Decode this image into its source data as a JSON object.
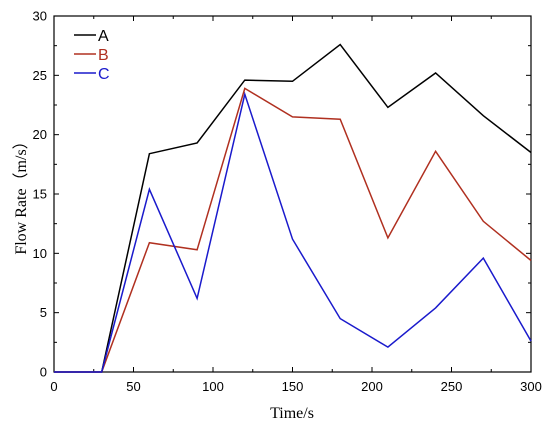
{
  "chart_data": {
    "type": "line",
    "xlabel": "Time/s",
    "ylabel": "Flow Rate（m/s）",
    "xlim": [
      0,
      300
    ],
    "ylim": [
      0,
      30
    ],
    "xticks": [
      0,
      50,
      100,
      150,
      200,
      250,
      300
    ],
    "yticks": [
      0,
      5,
      10,
      15,
      20,
      25,
      30
    ],
    "grid": false,
    "legend_position": "top-left",
    "series": [
      {
        "name": "A",
        "color": "#000000",
        "x": [
          0,
          30,
          60,
          90,
          120,
          150,
          180,
          210,
          240,
          270,
          300
        ],
        "y": [
          0,
          0,
          18.4,
          19.3,
          24.6,
          24.5,
          27.6,
          22.3,
          25.2,
          21.6,
          18.5
        ]
      },
      {
        "name": "B",
        "color": "#b03020",
        "x": [
          0,
          30,
          60,
          90,
          120,
          150,
          180,
          210,
          240,
          270,
          300
        ],
        "y": [
          0,
          0,
          10.9,
          10.3,
          23.9,
          21.5,
          21.3,
          11.3,
          18.6,
          12.7,
          9.4
        ]
      },
      {
        "name": "C",
        "color": "#1a1acc",
        "x": [
          0,
          30,
          60,
          90,
          120,
          150,
          180,
          210,
          240,
          270,
          300
        ],
        "y": [
          0,
          0,
          15.4,
          6.2,
          23.4,
          11.2,
          4.5,
          2.1,
          5.4,
          9.6,
          2.6
        ]
      }
    ]
  }
}
